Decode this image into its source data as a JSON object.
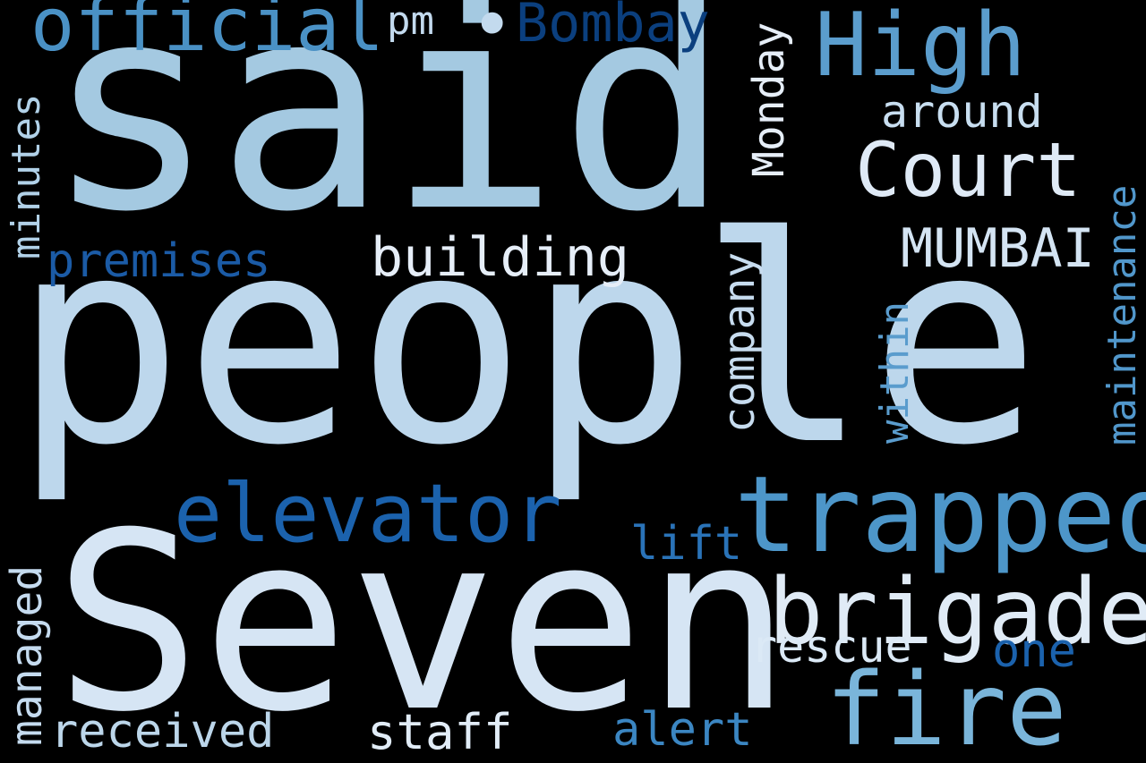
{
  "background": "#000000",
  "words": {
    "said": {
      "text": "said",
      "color": "#a4c9e1",
      "orientation": "horizontal"
    },
    "people": {
      "text": "people",
      "color": "#bdd7ec",
      "orientation": "horizontal"
    },
    "seven": {
      "text": "Seven",
      "color": "#d6e5f4",
      "orientation": "horizontal"
    },
    "official": {
      "text": "official",
      "color": "#4a91c5",
      "orientation": "horizontal"
    },
    "pm": {
      "text": "pm",
      "color": "#c3daee",
      "orientation": "horizontal"
    },
    "bullet": {
      "text": "•",
      "color": "#c3daee",
      "orientation": "horizontal"
    },
    "bombay": {
      "text": "Bombay",
      "color": "#0b3f7e",
      "orientation": "horizontal"
    },
    "high": {
      "text": "High",
      "color": "#5b9dcd",
      "orientation": "horizontal"
    },
    "monday": {
      "text": "Monday",
      "color": "#e6eef8",
      "orientation": "vertical"
    },
    "around": {
      "text": "around",
      "color": "#c8def0",
      "orientation": "horizontal"
    },
    "court": {
      "text": "Court",
      "color": "#dfeaf6",
      "orientation": "horizontal"
    },
    "minutes": {
      "text": "minutes",
      "color": "#b1d1e8",
      "orientation": "vertical"
    },
    "maintenance": {
      "text": "maintenance",
      "color": "#5197cb",
      "orientation": "vertical"
    },
    "premises": {
      "text": "premises",
      "color": "#1b5ba6",
      "orientation": "horizontal"
    },
    "building": {
      "text": "building",
      "color": "#e6eef8",
      "orientation": "horizontal"
    },
    "mumbai": {
      "text": "MUMBAI",
      "color": "#d4e4f3",
      "orientation": "horizontal"
    },
    "company": {
      "text": "company",
      "color": "#c7dcef",
      "orientation": "vertical"
    },
    "within": {
      "text": "within",
      "color": "#5a9ccd",
      "orientation": "vertical"
    },
    "elevator": {
      "text": "elevator",
      "color": "#1b62ad",
      "orientation": "horizontal"
    },
    "trapped": {
      "text": "trapped",
      "color": "#4d96c9",
      "orientation": "horizontal"
    },
    "lift": {
      "text": "lift",
      "color": "#2a73b8",
      "orientation": "horizontal"
    },
    "brigade": {
      "text": "brigade",
      "color": "#e0ebf6",
      "orientation": "horizontal"
    },
    "managed": {
      "text": "managed",
      "color": "#c5dbef",
      "orientation": "vertical"
    },
    "rescue": {
      "text": "rescue",
      "color": "#dbe9f6",
      "orientation": "horizontal"
    },
    "one": {
      "text": "one",
      "color": "#1b62ad",
      "orientation": "horizontal"
    },
    "received": {
      "text": "received",
      "color": "#bcd6ea",
      "orientation": "horizontal"
    },
    "staff": {
      "text": "staff",
      "color": "#e1ecf7",
      "orientation": "horizontal"
    },
    "alert": {
      "text": "alert",
      "color": "#3b86c2",
      "orientation": "horizontal"
    },
    "fire": {
      "text": "fire",
      "color": "#7ab5da",
      "orientation": "horizontal"
    }
  }
}
